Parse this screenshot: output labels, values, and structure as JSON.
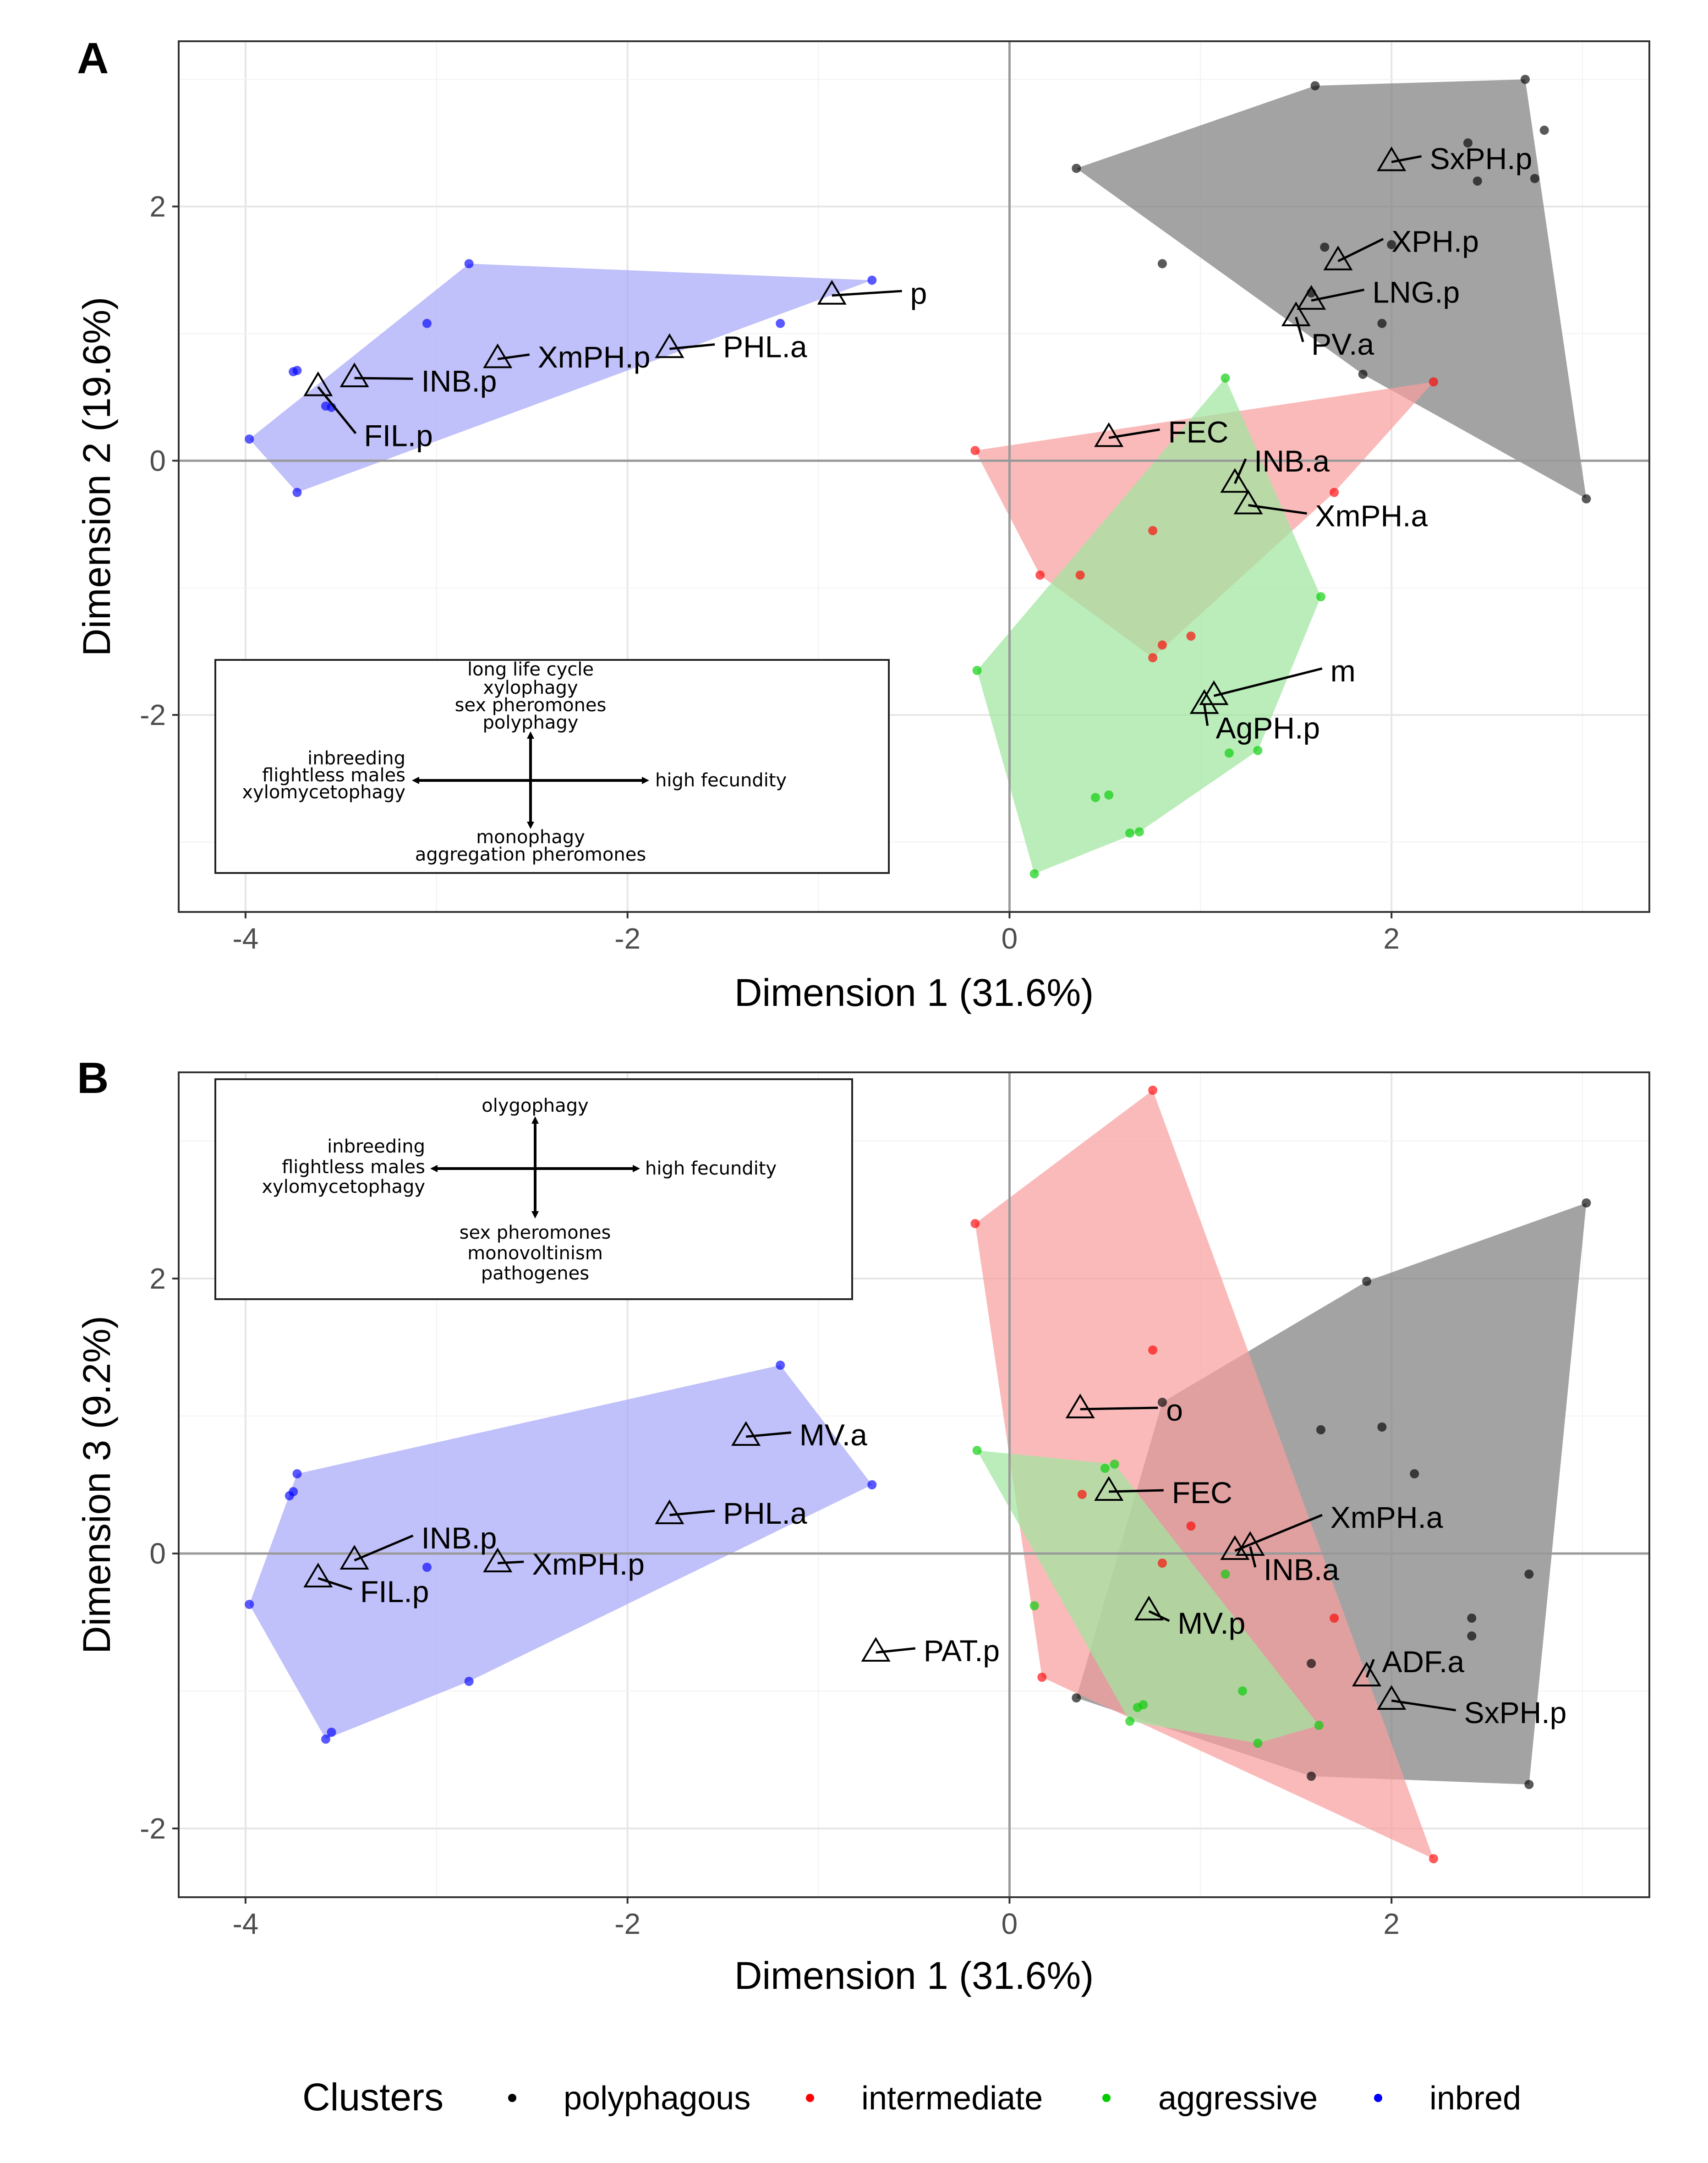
{
  "chart_data": [
    {
      "type": "scatter",
      "panel_label": "A",
      "xlabel": "Dimension 1 (31.6%)",
      "ylabel": "Dimension 2 (19.6%)",
      "xlim": [
        -4.35,
        3.35
      ],
      "ylim": [
        -3.55,
        3.3
      ],
      "xticks": [
        -4,
        -2,
        0,
        2
      ],
      "yticks": [
        -2,
        0,
        2
      ],
      "xtick_labels": [
        "-4",
        "-2",
        "0",
        "2"
      ],
      "ytick_labels": [
        "-2",
        "0",
        "2"
      ],
      "grid": true,
      "series": [
        {
          "name": "polyphagous",
          "color": "#000000",
          "fill": "#808080",
          "points": [
            [
              1.6,
              2.95
            ],
            [
              2.7,
              3.0
            ],
            [
              2.8,
              2.6
            ],
            [
              0.35,
              2.3
            ],
            [
              2.4,
              2.5
            ],
            [
              2.45,
              2.2
            ],
            [
              2.75,
              2.22
            ],
            [
              0.8,
              1.55
            ],
            [
              1.65,
              1.68
            ],
            [
              2.0,
              1.7
            ],
            [
              1.58,
              1.32
            ],
            [
              1.95,
              1.08
            ],
            [
              1.85,
              0.68
            ],
            [
              3.02,
              -0.3
            ]
          ],
          "hull": [
            [
              0.35,
              2.3
            ],
            [
              1.6,
              2.95
            ],
            [
              2.7,
              3.0
            ],
            [
              3.02,
              -0.3
            ],
            [
              1.85,
              0.68
            ]
          ]
        },
        {
          "name": "intermediate",
          "color": "#ff0000",
          "fill": "#f8a0a0",
          "points": [
            [
              -0.18,
              0.08
            ],
            [
              2.22,
              0.62
            ],
            [
              1.7,
              -0.25
            ],
            [
              0.75,
              -0.55
            ],
            [
              0.16,
              -0.9
            ],
            [
              0.37,
              -0.9
            ],
            [
              0.95,
              -1.38
            ],
            [
              0.8,
              -1.45
            ],
            [
              0.75,
              -1.55
            ]
          ],
          "hull": [
            [
              -0.18,
              0.08
            ],
            [
              2.22,
              0.62
            ],
            [
              1.7,
              -0.25
            ],
            [
              0.75,
              -1.55
            ],
            [
              0.16,
              -0.9
            ]
          ]
        },
        {
          "name": "aggressive",
          "color": "#00cc00",
          "fill": "#a0e6a0",
          "points": [
            [
              1.13,
              0.65
            ],
            [
              1.63,
              -1.07
            ],
            [
              -0.17,
              -1.65
            ],
            [
              1.3,
              -2.28
            ],
            [
              1.15,
              -2.3
            ],
            [
              0.45,
              -2.65
            ],
            [
              0.52,
              -2.63
            ],
            [
              0.63,
              -2.93
            ],
            [
              0.68,
              -2.92
            ],
            [
              0.13,
              -3.25
            ]
          ],
          "hull": [
            [
              1.13,
              0.65
            ],
            [
              1.63,
              -1.07
            ],
            [
              1.3,
              -2.28
            ],
            [
              0.68,
              -2.92
            ],
            [
              0.13,
              -3.25
            ],
            [
              -0.17,
              -1.65
            ]
          ]
        },
        {
          "name": "inbred",
          "color": "#0000ff",
          "fill": "#a8a8f8",
          "points": [
            [
              -2.83,
              1.55
            ],
            [
              -0.72,
              1.42
            ],
            [
              -3.05,
              1.08
            ],
            [
              -1.2,
              1.08
            ],
            [
              -3.75,
              0.7
            ],
            [
              -3.73,
              0.71
            ],
            [
              -3.58,
              0.43
            ],
            [
              -3.55,
              0.42
            ],
            [
              -3.98,
              0.17
            ],
            [
              -3.73,
              -0.25
            ]
          ],
          "hull": [
            [
              -2.83,
              1.55
            ],
            [
              -0.72,
              1.42
            ],
            [
              -3.73,
              -0.25
            ],
            [
              -3.98,
              0.17
            ]
          ]
        }
      ],
      "triangles": [
        {
          "x": -0.93,
          "y": 1.3,
          "label": "p",
          "lx": -0.52,
          "ly": 1.27
        },
        {
          "x": -1.78,
          "y": 0.88,
          "label": "PHL.a",
          "lx": -1.5,
          "ly": 0.85
        },
        {
          "x": -2.68,
          "y": 0.8,
          "label": "XmPH.p",
          "lx": -2.47,
          "ly": 0.77
        },
        {
          "x": -3.43,
          "y": 0.65,
          "label": "INB.p",
          "lx": -3.08,
          "ly": 0.58
        },
        {
          "x": -3.62,
          "y": 0.58,
          "label": "FIL.p",
          "lx": -3.38,
          "ly": 0.15
        },
        {
          "x": 0.52,
          "y": 0.18,
          "label": "FEC",
          "lx": 0.83,
          "ly": 0.18
        },
        {
          "x": 1.18,
          "y": -0.18,
          "label": "INB.a",
          "lx": 1.28,
          "ly": -0.05
        },
        {
          "x": 1.25,
          "y": -0.35,
          "label": "XmPH.a",
          "lx": 1.6,
          "ly": -0.48
        },
        {
          "x": 1.07,
          "y": -1.85,
          "label": "m",
          "lx": 1.68,
          "ly": -1.7
        },
        {
          "x": 1.02,
          "y": -1.92,
          "label": "AgPH.p",
          "lx": 1.08,
          "ly": -2.15
        },
        {
          "x": 2.0,
          "y": 2.35,
          "label": "SxPH.p",
          "lx": 2.2,
          "ly": 2.33
        },
        {
          "x": 1.72,
          "y": 1.57,
          "label": "XPH.p",
          "lx": 2.0,
          "ly": 1.68
        },
        {
          "x": 1.58,
          "y": 1.26,
          "label": "LNG.p",
          "lx": 1.9,
          "ly": 1.28
        },
        {
          "x": 1.5,
          "y": 1.13,
          "label": "PV.a",
          "lx": 1.58,
          "ly": 0.87
        }
      ],
      "legend_box": {
        "top": [
          "long life cycle",
          "xylophagy",
          "sex pheromones",
          "polyphagy"
        ],
        "left": [
          "inbreeding",
          "flightless males",
          "xylomycetophagy"
        ],
        "right": [
          "high fecundity"
        ],
        "bottom": [
          "monophagy",
          "aggregation pheromones"
        ]
      }
    },
    {
      "type": "scatter",
      "panel_label": "B",
      "xlabel": "Dimension 1 (31.6%)",
      "ylabel": "Dimension 3 (9.2%)",
      "xlim": [
        -4.35,
        3.35
      ],
      "ylim": [
        -2.5,
        3.5
      ],
      "xticks": [
        -4,
        -2,
        0,
        2
      ],
      "yticks": [
        -2,
        0,
        2
      ],
      "xtick_labels": [
        "-4",
        "-2",
        "0",
        "2"
      ],
      "ytick_labels": [
        "-2",
        "0",
        "2"
      ],
      "grid": true,
      "series": [
        {
          "name": "polyphagous",
          "color": "#000000",
          "fill": "#808080",
          "points": [
            [
              3.02,
              2.55
            ],
            [
              1.87,
              1.98
            ],
            [
              1.63,
              0.9
            ],
            [
              1.95,
              0.92
            ],
            [
              2.12,
              0.58
            ],
            [
              0.8,
              1.1
            ],
            [
              2.42,
              -0.47
            ],
            [
              2.42,
              -0.6
            ],
            [
              2.72,
              -0.15
            ],
            [
              1.58,
              -0.8
            ],
            [
              0.35,
              -1.05
            ],
            [
              1.58,
              -1.62
            ],
            [
              2.72,
              -1.68
            ]
          ],
          "hull": [
            [
              3.02,
              2.55
            ],
            [
              1.87,
              1.98
            ],
            [
              0.8,
              1.1
            ],
            [
              0.35,
              -1.05
            ],
            [
              1.58,
              -1.62
            ],
            [
              2.72,
              -1.68
            ]
          ]
        },
        {
          "name": "intermediate",
          "color": "#ff0000",
          "fill": "#f8a0a0",
          "points": [
            [
              0.75,
              3.37
            ],
            [
              -0.18,
              2.4
            ],
            [
              0.75,
              1.48
            ],
            [
              0.38,
              0.43
            ],
            [
              0.95,
              0.2
            ],
            [
              0.8,
              -0.07
            ],
            [
              1.7,
              -0.47
            ],
            [
              0.17,
              -0.9
            ],
            [
              2.22,
              -2.22
            ]
          ],
          "hull": [
            [
              0.75,
              3.37
            ],
            [
              2.22,
              -2.22
            ],
            [
              0.17,
              -0.9
            ],
            [
              -0.18,
              2.4
            ]
          ]
        },
        {
          "name": "aggressive",
          "color": "#00cc00",
          "fill": "#a0e6a0",
          "points": [
            [
              -0.17,
              0.75
            ],
            [
              0.55,
              0.65
            ],
            [
              0.5,
              0.62
            ],
            [
              0.13,
              -0.38
            ],
            [
              1.13,
              -0.15
            ],
            [
              1.22,
              -1.0
            ],
            [
              0.7,
              -1.1
            ],
            [
              0.67,
              -1.12
            ],
            [
              0.63,
              -1.22
            ],
            [
              1.62,
              -1.25
            ],
            [
              1.3,
              -1.38
            ]
          ],
          "hull": [
            [
              -0.17,
              0.75
            ],
            [
              0.55,
              0.65
            ],
            [
              1.62,
              -1.25
            ],
            [
              1.3,
              -1.38
            ],
            [
              0.63,
              -1.22
            ]
          ]
        },
        {
          "name": "inbred",
          "color": "#0000ff",
          "fill": "#a8a8f8",
          "points": [
            [
              -1.2,
              1.37
            ],
            [
              -0.72,
              0.5
            ],
            [
              -3.73,
              0.58
            ],
            [
              -3.75,
              0.45
            ],
            [
              -3.77,
              0.42
            ],
            [
              -3.05,
              -0.1
            ],
            [
              -3.98,
              -0.37
            ],
            [
              -2.83,
              -0.93
            ],
            [
              -3.55,
              -1.3
            ],
            [
              -3.58,
              -1.35
            ]
          ],
          "hull": [
            [
              -1.2,
              1.37
            ],
            [
              -0.72,
              0.5
            ],
            [
              -2.83,
              -0.93
            ],
            [
              -3.58,
              -1.35
            ],
            [
              -3.98,
              -0.37
            ],
            [
              -3.73,
              0.58
            ]
          ]
        }
      ],
      "triangles": [
        {
          "x": 0.37,
          "y": 1.05,
          "label": "o",
          "lx": 0.82,
          "ly": 1.0
        },
        {
          "x": -1.38,
          "y": 0.85,
          "label": "MV.a",
          "lx": -1.1,
          "ly": 0.82
        },
        {
          "x": -1.78,
          "y": 0.28,
          "label": "PHL.a",
          "lx": -1.5,
          "ly": 0.25
        },
        {
          "x": -2.68,
          "y": -0.07,
          "label": "XmPH.p",
          "lx": -2.5,
          "ly": -0.12
        },
        {
          "x": -3.43,
          "y": -0.05,
          "label": "INB.p",
          "lx": -3.08,
          "ly": 0.07
        },
        {
          "x": -3.62,
          "y": -0.18,
          "label": "FIL.p",
          "lx": -3.4,
          "ly": -0.32
        },
        {
          "x": 0.52,
          "y": 0.45,
          "label": "FEC",
          "lx": 0.85,
          "ly": 0.4
        },
        {
          "x": 1.18,
          "y": 0.02,
          "label": "XmPH.a",
          "lx": 1.68,
          "ly": 0.22
        },
        {
          "x": 1.26,
          "y": 0.05,
          "label": "INB.a",
          "lx": 1.33,
          "ly": -0.16
        },
        {
          "x": 0.73,
          "y": -0.42,
          "label": "MV.p",
          "lx": 0.88,
          "ly": -0.55
        },
        {
          "x": -0.7,
          "y": -0.72,
          "label": "PAT.p",
          "lx": -0.45,
          "ly": -0.75
        },
        {
          "x": 1.87,
          "y": -0.9,
          "label": "ADF.a",
          "lx": 1.95,
          "ly": -0.83
        },
        {
          "x": 2.0,
          "y": -1.07,
          "label": "SxPH.p",
          "lx": 2.38,
          "ly": -1.2
        }
      ],
      "legend_box": {
        "top": [
          "olygophagy"
        ],
        "left": [
          "inbreeding",
          "flightless males",
          "xylomycetophagy"
        ],
        "right": [
          "high fecundity"
        ],
        "bottom": [
          "sex pheromones",
          "monovoltinism",
          "pathogenes"
        ]
      }
    }
  ],
  "legend": {
    "title": "Clusters",
    "items": [
      {
        "label": "polyphagous",
        "color": "#000000"
      },
      {
        "label": "intermediate",
        "color": "#ff0000"
      },
      {
        "label": "aggressive",
        "color": "#00cc00"
      },
      {
        "label": "inbred",
        "color": "#0000ff"
      }
    ]
  }
}
